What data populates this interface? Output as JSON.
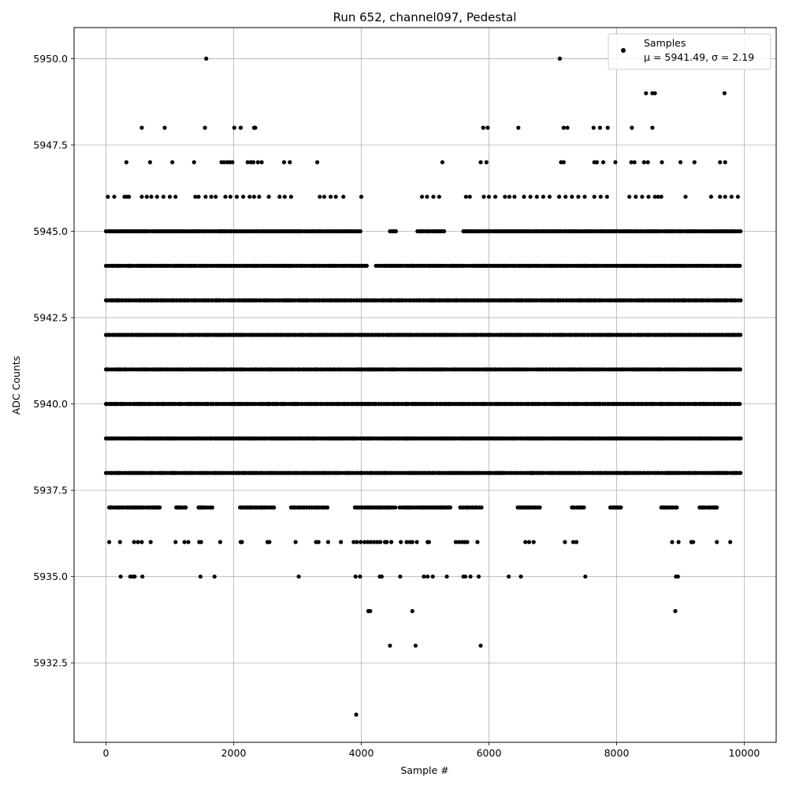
{
  "chart_data": {
    "type": "scatter",
    "title": "Run 652, channel097, Pedestal",
    "xlabel": "Sample #",
    "ylabel": "ADC Counts",
    "xlim": [
      -500,
      10500
    ],
    "ylim": [
      5930.2,
      5950.9
    ],
    "xticks": [
      0,
      2000,
      4000,
      6000,
      8000,
      10000
    ],
    "yticks": [
      5932.5,
      5935.0,
      5937.5,
      5940.0,
      5942.5,
      5945.0,
      5947.5,
      5950.0
    ],
    "xtick_labels": [
      "0",
      "2000",
      "4000",
      "6000",
      "8000",
      "10000"
    ],
    "ytick_labels": [
      "5932.5",
      "5935.0",
      "5937.5",
      "5940.0",
      "5942.5",
      "5945.0",
      "5947.5",
      "5950.0"
    ],
    "grid": true,
    "legend": {
      "placement": "top-right",
      "entry": "Samples",
      "stats": "μ = 5941.49, σ = 2.19"
    },
    "marker_color": "#000000",
    "series": [
      {
        "name": "Samples",
        "n_samples": 10000,
        "mean": 5941.49,
        "sigma": 2.19,
        "bands": [
          {
            "y": 5938,
            "ranges": [
              [
                0,
                9950
              ]
            ]
          },
          {
            "y": 5939,
            "ranges": [
              [
                0,
                9950
              ]
            ]
          },
          {
            "y": 5940,
            "ranges": [
              [
                0,
                9950
              ]
            ]
          },
          {
            "y": 5941,
            "ranges": [
              [
                0,
                9950
              ]
            ]
          },
          {
            "y": 5942,
            "ranges": [
              [
                0,
                9950
              ]
            ]
          },
          {
            "y": 5943,
            "ranges": [
              [
                0,
                9950
              ]
            ]
          },
          {
            "y": 5944,
            "ranges": [
              [
                0,
                4100
              ],
              [
                4230,
                9950
              ]
            ]
          },
          {
            "y": 5945,
            "ranges": [
              [
                0,
                4000
              ],
              [
                4450,
                4550
              ],
              [
                4880,
                5300
              ],
              [
                5600,
                9950
              ]
            ]
          },
          {
            "y": 5937,
            "ranges": [
              [
                50,
                850
              ],
              [
                1100,
                1250
              ],
              [
                1450,
                1700
              ],
              [
                2100,
                2650
              ],
              [
                2900,
                3500
              ],
              [
                3900,
                4550
              ],
              [
                4600,
                5400
              ],
              [
                5550,
                5900
              ],
              [
                6450,
                6800
              ],
              [
                7300,
                7500
              ],
              [
                7900,
                8100
              ],
              [
                8700,
                8950
              ],
              [
                9300,
                9600
              ]
            ]
          }
        ],
        "points": [
          [
            1570,
            5950
          ],
          [
            7110,
            5950
          ],
          [
            8460,
            5949
          ],
          [
            8560,
            5949
          ],
          [
            8600,
            5949
          ],
          [
            9690,
            5949
          ],
          [
            560,
            5948
          ],
          [
            920,
            5948
          ],
          [
            1550,
            5948
          ],
          [
            2010,
            5948
          ],
          [
            2110,
            5948
          ],
          [
            2320,
            5948
          ],
          [
            2340,
            5948
          ],
          [
            5910,
            5948
          ],
          [
            5980,
            5948
          ],
          [
            6460,
            5948
          ],
          [
            7170,
            5948
          ],
          [
            7230,
            5948
          ],
          [
            7640,
            5948
          ],
          [
            7740,
            5948
          ],
          [
            7860,
            5948
          ],
          [
            8240,
            5948
          ],
          [
            8560,
            5948
          ],
          [
            320,
            5947
          ],
          [
            690,
            5947
          ],
          [
            1040,
            5947
          ],
          [
            1380,
            5947
          ],
          [
            1810,
            5947
          ],
          [
            1850,
            5947
          ],
          [
            1900,
            5947
          ],
          [
            1940,
            5947
          ],
          [
            1980,
            5947
          ],
          [
            2220,
            5947
          ],
          [
            2270,
            5947
          ],
          [
            2310,
            5947
          ],
          [
            2380,
            5947
          ],
          [
            2440,
            5947
          ],
          [
            2790,
            5947
          ],
          [
            2880,
            5947
          ],
          [
            3310,
            5947
          ],
          [
            5270,
            5947
          ],
          [
            5870,
            5947
          ],
          [
            5960,
            5947
          ],
          [
            7130,
            5947
          ],
          [
            7170,
            5947
          ],
          [
            7650,
            5947
          ],
          [
            7690,
            5947
          ],
          [
            7790,
            5947
          ],
          [
            7980,
            5947
          ],
          [
            8230,
            5947
          ],
          [
            8280,
            5947
          ],
          [
            8430,
            5947
          ],
          [
            8490,
            5947
          ],
          [
            8710,
            5947
          ],
          [
            9000,
            5947
          ],
          [
            9220,
            5947
          ],
          [
            9620,
            5947
          ],
          [
            9700,
            5947
          ],
          [
            30,
            5946
          ],
          [
            130,
            5946
          ],
          [
            290,
            5946
          ],
          [
            330,
            5946
          ],
          [
            360,
            5946
          ],
          [
            560,
            5946
          ],
          [
            640,
            5946
          ],
          [
            710,
            5946
          ],
          [
            800,
            5946
          ],
          [
            900,
            5946
          ],
          [
            1000,
            5946
          ],
          [
            1090,
            5946
          ],
          [
            1400,
            5946
          ],
          [
            1450,
            5946
          ],
          [
            1560,
            5946
          ],
          [
            1650,
            5946
          ],
          [
            1720,
            5946
          ],
          [
            1870,
            5946
          ],
          [
            1950,
            5946
          ],
          [
            2050,
            5946
          ],
          [
            2150,
            5946
          ],
          [
            2250,
            5946
          ],
          [
            2320,
            5946
          ],
          [
            2400,
            5946
          ],
          [
            2550,
            5946
          ],
          [
            2720,
            5946
          ],
          [
            2800,
            5946
          ],
          [
            2900,
            5946
          ],
          [
            3350,
            5946
          ],
          [
            3420,
            5946
          ],
          [
            3520,
            5946
          ],
          [
            3600,
            5946
          ],
          [
            3720,
            5946
          ],
          [
            4000,
            5946
          ],
          [
            4950,
            5946
          ],
          [
            5030,
            5946
          ],
          [
            5130,
            5946
          ],
          [
            5220,
            5946
          ],
          [
            5640,
            5946
          ],
          [
            5700,
            5946
          ],
          [
            5920,
            5946
          ],
          [
            6000,
            5946
          ],
          [
            6100,
            5946
          ],
          [
            6250,
            5946
          ],
          [
            6320,
            5946
          ],
          [
            6400,
            5946
          ],
          [
            6550,
            5946
          ],
          [
            6650,
            5946
          ],
          [
            6750,
            5946
          ],
          [
            6850,
            5946
          ],
          [
            6950,
            5946
          ],
          [
            7100,
            5946
          ],
          [
            7200,
            5946
          ],
          [
            7300,
            5946
          ],
          [
            7400,
            5946
          ],
          [
            7500,
            5946
          ],
          [
            7650,
            5946
          ],
          [
            7750,
            5946
          ],
          [
            7850,
            5946
          ],
          [
            8200,
            5946
          ],
          [
            8300,
            5946
          ],
          [
            8400,
            5946
          ],
          [
            8500,
            5946
          ],
          [
            8600,
            5946
          ],
          [
            8650,
            5946
          ],
          [
            8700,
            5946
          ],
          [
            9080,
            5946
          ],
          [
            9480,
            5946
          ],
          [
            9620,
            5946
          ],
          [
            9700,
            5946
          ],
          [
            9800,
            5946
          ],
          [
            9900,
            5946
          ],
          [
            50,
            5936
          ],
          [
            220,
            5936
          ],
          [
            440,
            5936
          ],
          [
            500,
            5936
          ],
          [
            560,
            5936
          ],
          [
            700,
            5936
          ],
          [
            1090,
            5936
          ],
          [
            1230,
            5936
          ],
          [
            1290,
            5936
          ],
          [
            1460,
            5936
          ],
          [
            1490,
            5936
          ],
          [
            1790,
            5936
          ],
          [
            2110,
            5936
          ],
          [
            2130,
            5936
          ],
          [
            2530,
            5936
          ],
          [
            2560,
            5936
          ],
          [
            2970,
            5936
          ],
          [
            3290,
            5936
          ],
          [
            3330,
            5936
          ],
          [
            3480,
            5936
          ],
          [
            3680,
            5936
          ],
          [
            3880,
            5936
          ],
          [
            3930,
            5936
          ],
          [
            3990,
            5936
          ],
          [
            4050,
            5936
          ],
          [
            4100,
            5936
          ],
          [
            4150,
            5936
          ],
          [
            4200,
            5936
          ],
          [
            4250,
            5936
          ],
          [
            4300,
            5936
          ],
          [
            4370,
            5936
          ],
          [
            4400,
            5936
          ],
          [
            4470,
            5936
          ],
          [
            4620,
            5936
          ],
          [
            4710,
            5936
          ],
          [
            4760,
            5936
          ],
          [
            4800,
            5936
          ],
          [
            4870,
            5936
          ],
          [
            5040,
            5936
          ],
          [
            5060,
            5936
          ],
          [
            5480,
            5936
          ],
          [
            5530,
            5936
          ],
          [
            5580,
            5936
          ],
          [
            5620,
            5936
          ],
          [
            5660,
            5936
          ],
          [
            5820,
            5936
          ],
          [
            6570,
            5936
          ],
          [
            6630,
            5936
          ],
          [
            6700,
            5936
          ],
          [
            7190,
            5936
          ],
          [
            7320,
            5936
          ],
          [
            7370,
            5936
          ],
          [
            8870,
            5936
          ],
          [
            8970,
            5936
          ],
          [
            9170,
            5936
          ],
          [
            9200,
            5936
          ],
          [
            9570,
            5936
          ],
          [
            9780,
            5936
          ],
          [
            230,
            5935
          ],
          [
            380,
            5935
          ],
          [
            420,
            5935
          ],
          [
            450,
            5935
          ],
          [
            570,
            5935
          ],
          [
            1480,
            5935
          ],
          [
            1700,
            5935
          ],
          [
            3020,
            5935
          ],
          [
            3910,
            5935
          ],
          [
            3980,
            5935
          ],
          [
            4290,
            5935
          ],
          [
            4320,
            5935
          ],
          [
            4610,
            5935
          ],
          [
            4980,
            5935
          ],
          [
            5040,
            5935
          ],
          [
            5120,
            5935
          ],
          [
            5340,
            5935
          ],
          [
            5600,
            5935
          ],
          [
            5630,
            5935
          ],
          [
            5710,
            5935
          ],
          [
            5840,
            5935
          ],
          [
            6310,
            5935
          ],
          [
            6500,
            5935
          ],
          [
            7510,
            5935
          ],
          [
            8930,
            5935
          ],
          [
            8960,
            5935
          ],
          [
            4110,
            5934
          ],
          [
            4140,
            5934
          ],
          [
            4800,
            5934
          ],
          [
            8920,
            5934
          ],
          [
            4450,
            5933
          ],
          [
            4850,
            5933
          ],
          [
            5870,
            5933
          ],
          [
            3920,
            5931
          ]
        ]
      }
    ]
  }
}
